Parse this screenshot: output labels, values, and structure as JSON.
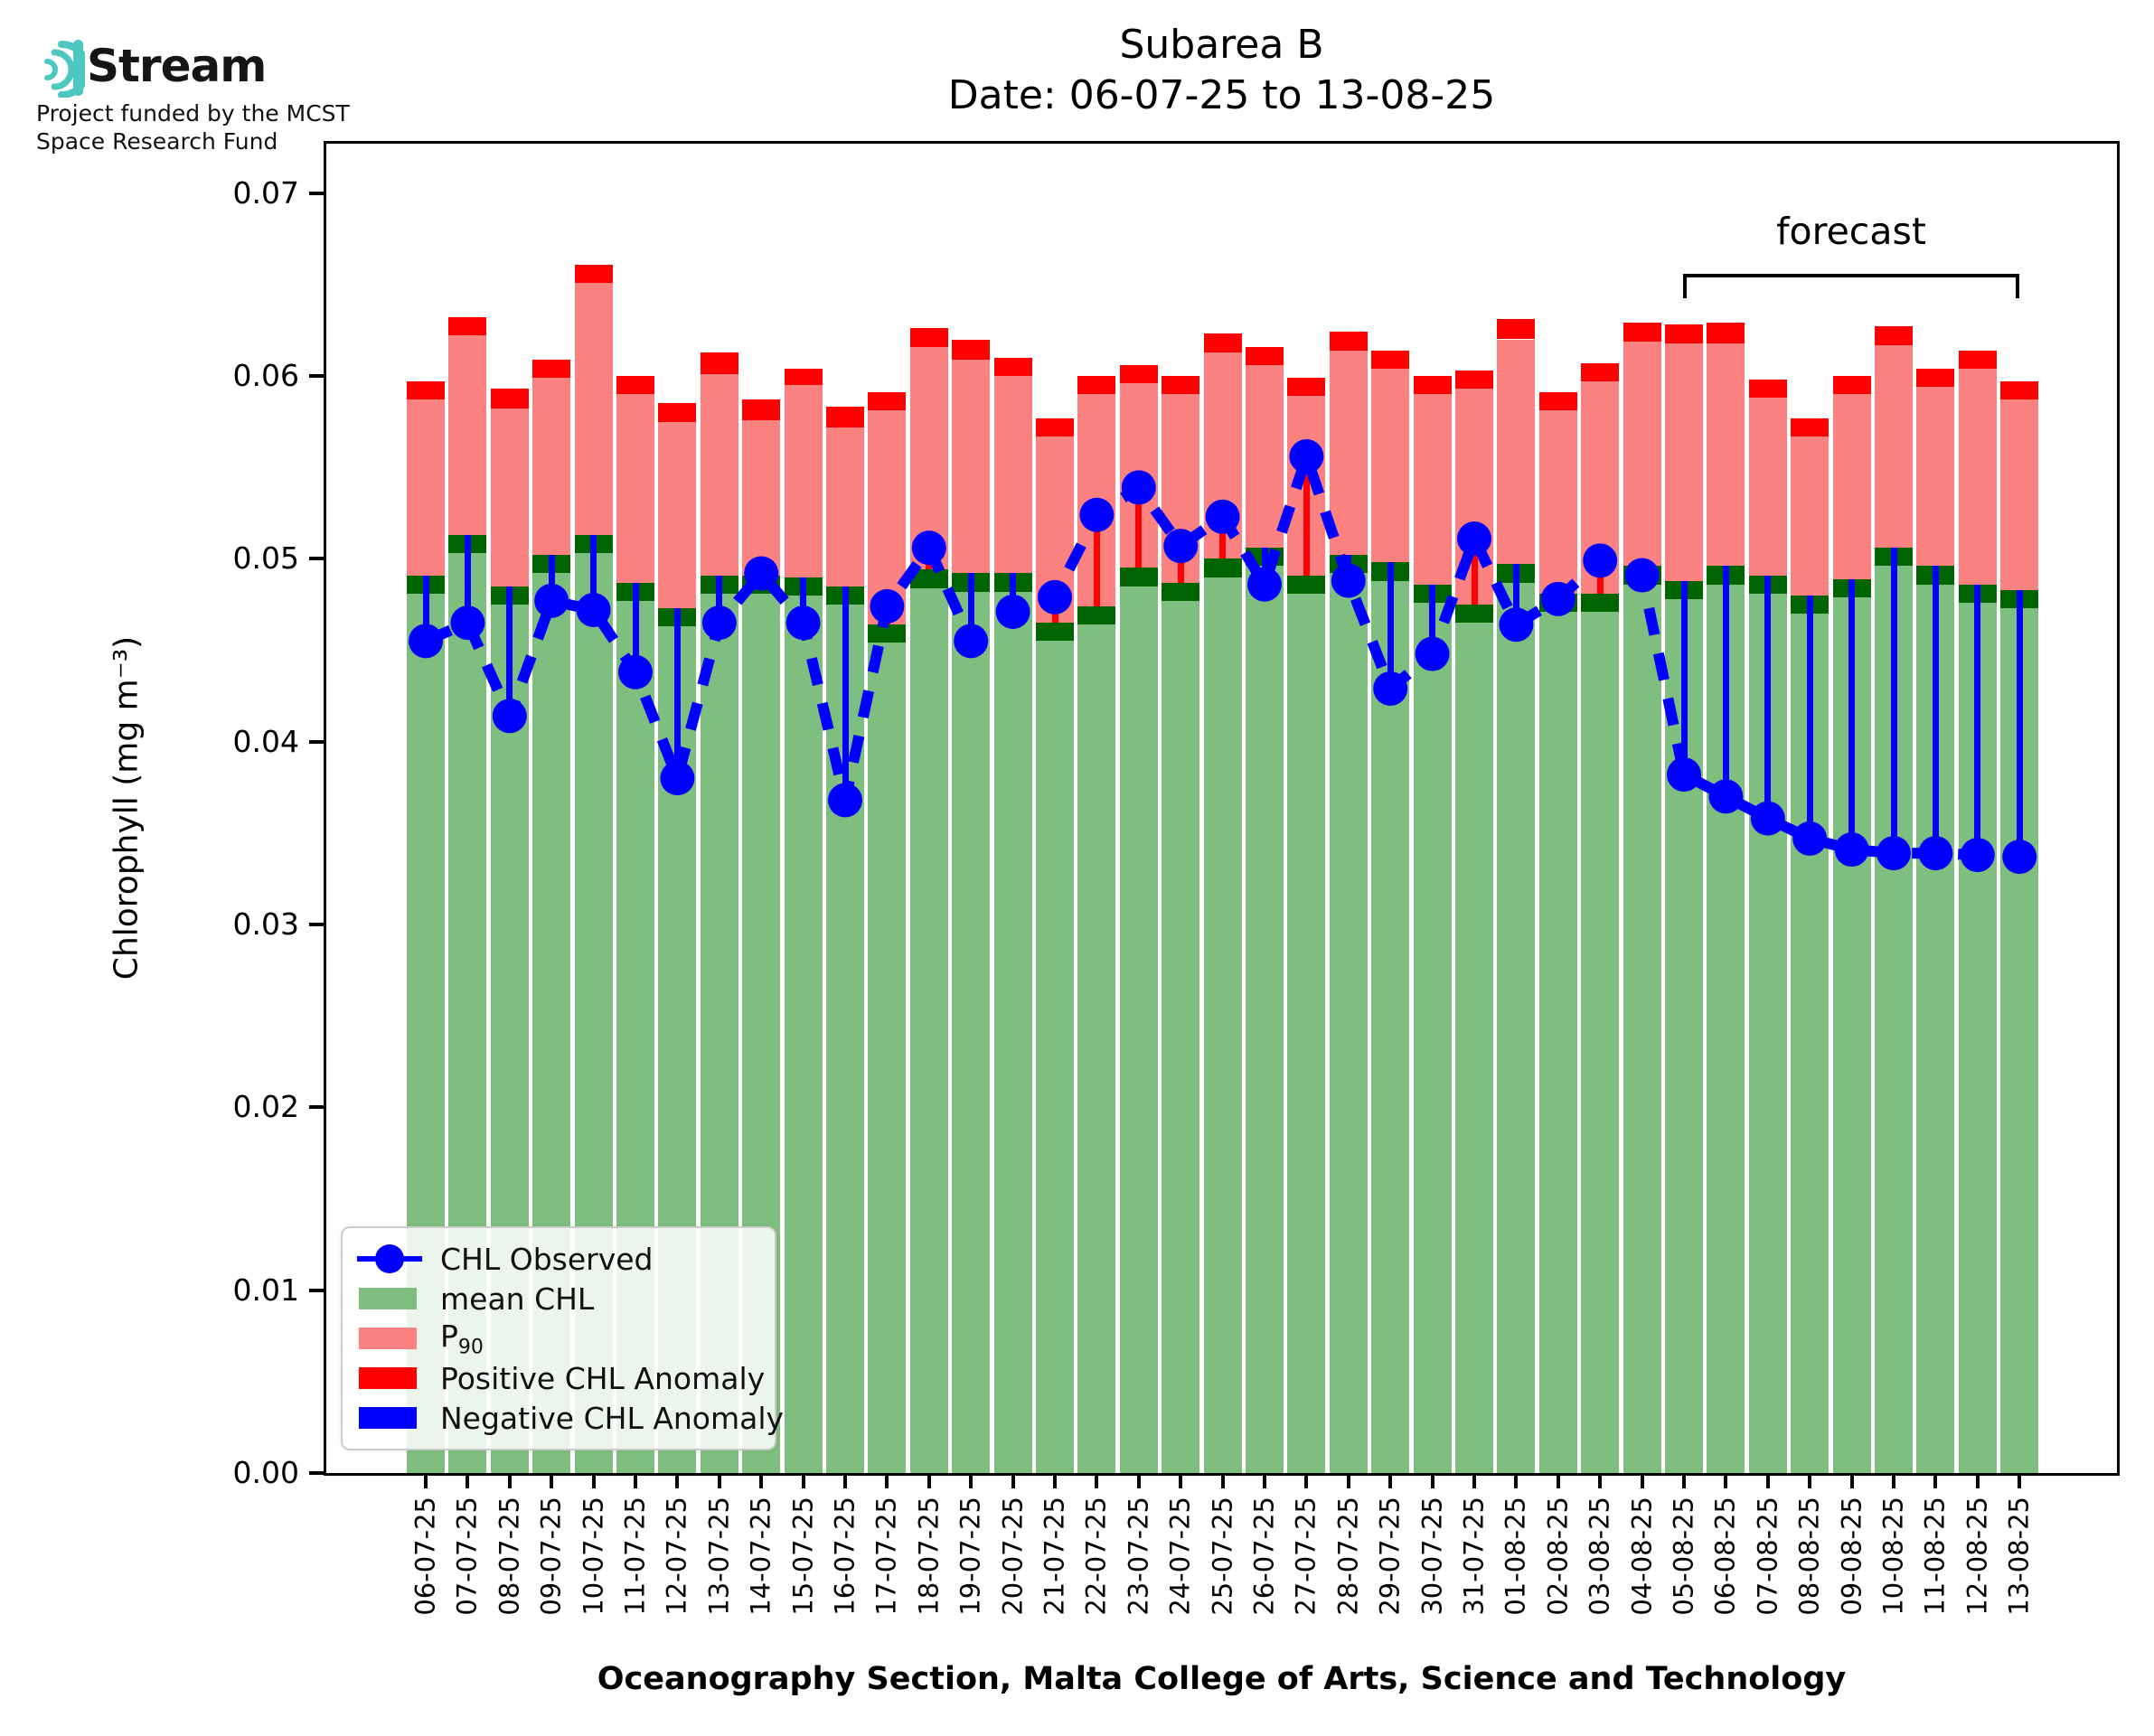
{
  "logo": {
    "brand": "Stream",
    "subtitle_line1": "Project funded by the MCST",
    "subtitle_line2": "Space Research Fund"
  },
  "title": {
    "line1": "Subarea B",
    "line2": "Date: 06-07-25 to 13-08-25"
  },
  "axes": {
    "ylabel": "Chlorophyll (mg m⁻³)",
    "xlabel": "Oceanography Section, Malta College of Arts, Science and Technology",
    "ytick_values": [
      0,
      0.01,
      0.02,
      0.03,
      0.04,
      0.05,
      0.06,
      0.07
    ],
    "ytick_labels": [
      "0.00",
      "0.01",
      "0.02",
      "0.03",
      "0.04",
      "0.05",
      "0.06",
      "0.07"
    ]
  },
  "colors": {
    "mean_chl": "#7EBE7E",
    "mean_cap": "#006400",
    "p90": "#FC8181",
    "positive_anomaly": "#FF0000",
    "negative_anomaly": "#0000FF",
    "observed": "#0000FF",
    "brand_teal": "#4CC8C0"
  },
  "legend": {
    "items": [
      {
        "type": "line-marker",
        "label": "CHL Observed",
        "label_sub": "",
        "color": "#0000FF"
      },
      {
        "type": "patch",
        "label": "mean CHL",
        "label_sub": "",
        "color": "#7EBE7E"
      },
      {
        "type": "patch",
        "label": "P",
        "label_sub": "90",
        "color": "#FC8181"
      },
      {
        "type": "patch",
        "label": "Positive CHL Anomaly",
        "label_sub": "",
        "color": "#FF0000"
      },
      {
        "type": "patch",
        "label": "Negative CHL Anomaly",
        "label_sub": "",
        "color": "#0000FF"
      }
    ]
  },
  "chart_data": {
    "type": "bar",
    "title": "Subarea B",
    "subtitle": "Date: 06-07-25 to 13-08-25",
    "xlabel": "Oceanography Section, Malta College of Arts, Science and Technology",
    "ylabel": "Chlorophyll (mg m⁻³)",
    "ylim": [
      0,
      0.0727
    ],
    "grid": false,
    "legend_position": "lower left",
    "categories": [
      "06-07-25",
      "07-07-25",
      "08-07-25",
      "09-07-25",
      "10-07-25",
      "11-07-25",
      "12-07-25",
      "13-07-25",
      "14-07-25",
      "15-07-25",
      "16-07-25",
      "17-07-25",
      "18-07-25",
      "19-07-25",
      "20-07-25",
      "21-07-25",
      "22-07-25",
      "23-07-25",
      "24-07-25",
      "25-07-25",
      "26-07-25",
      "27-07-25",
      "28-07-25",
      "29-07-25",
      "30-07-25",
      "31-07-25",
      "01-08-25",
      "02-08-25",
      "03-08-25",
      "04-08-25",
      "05-08-25",
      "06-08-25",
      "07-08-25",
      "08-08-25",
      "09-08-25",
      "10-08-25",
      "11-08-25",
      "12-08-25",
      "13-08-25"
    ],
    "series": [
      {
        "name": "mean CHL",
        "values": [
          0.0491,
          0.0513,
          0.0485,
          0.0502,
          0.0513,
          0.0487,
          0.0473,
          0.0491,
          0.0491,
          0.049,
          0.0485,
          0.0464,
          0.0494,
          0.0492,
          0.0492,
          0.0465,
          0.0474,
          0.0495,
          0.0487,
          0.05,
          0.0506,
          0.0491,
          0.0502,
          0.0498,
          0.0486,
          0.0475,
          0.0497,
          0.0481,
          0.0481,
          0.0496,
          0.0488,
          0.0496,
          0.0491,
          0.048,
          0.0489,
          0.0506,
          0.0496,
          0.0486,
          0.0483
        ]
      },
      {
        "name": "P90",
        "values": [
          0.0587,
          0.0622,
          0.0582,
          0.0599,
          0.0651,
          0.059,
          0.0575,
          0.0601,
          0.0576,
          0.0595,
          0.0572,
          0.0581,
          0.0616,
          0.0609,
          0.06,
          0.0567,
          0.059,
          0.0596,
          0.059,
          0.0613,
          0.0606,
          0.0589,
          0.0614,
          0.0604,
          0.059,
          0.0593,
          0.062,
          0.0581,
          0.0597,
          0.0619,
          0.0618,
          0.0618,
          0.0588,
          0.0567,
          0.059,
          0.0617,
          0.0594,
          0.0604,
          0.0587
        ]
      },
      {
        "name": "Positive CHL Anomaly top",
        "values": [
          0.0597,
          0.0632,
          0.0593,
          0.0609,
          0.0661,
          0.06,
          0.0585,
          0.0613,
          0.0587,
          0.0604,
          0.0583,
          0.0591,
          0.0626,
          0.062,
          0.061,
          0.0577,
          0.06,
          0.0606,
          0.06,
          0.0623,
          0.0616,
          0.0599,
          0.0624,
          0.0614,
          0.06,
          0.0603,
          0.0631,
          0.0591,
          0.0607,
          0.0629,
          0.0628,
          0.0629,
          0.0598,
          0.0577,
          0.06,
          0.0627,
          0.0604,
          0.0614,
          0.0597
        ]
      },
      {
        "name": "CHL Observed",
        "values": [
          0.0455,
          0.0465,
          0.0414,
          0.0477,
          0.0472,
          0.0438,
          0.038,
          0.0465,
          0.0492,
          0.0465,
          0.0368,
          0.0474,
          0.0506,
          0.0455,
          0.0471,
          0.0479,
          0.0524,
          0.0539,
          0.0507,
          0.0523,
          0.0486,
          0.0556,
          0.0488,
          0.0429,
          0.0448,
          0.0511,
          0.0464,
          0.0478,
          0.0499,
          0.0491,
          0.0382,
          0.037,
          0.0358,
          0.0347,
          0.0341,
          0.0339,
          0.0339,
          0.0338,
          0.0337
        ]
      }
    ],
    "mean_cap_thickness": 0.001,
    "forecast": {
      "label": "forecast",
      "start_date": "05-08-25",
      "end_date": "13-08-25",
      "start_index": 30,
      "end_index": 38
    }
  }
}
